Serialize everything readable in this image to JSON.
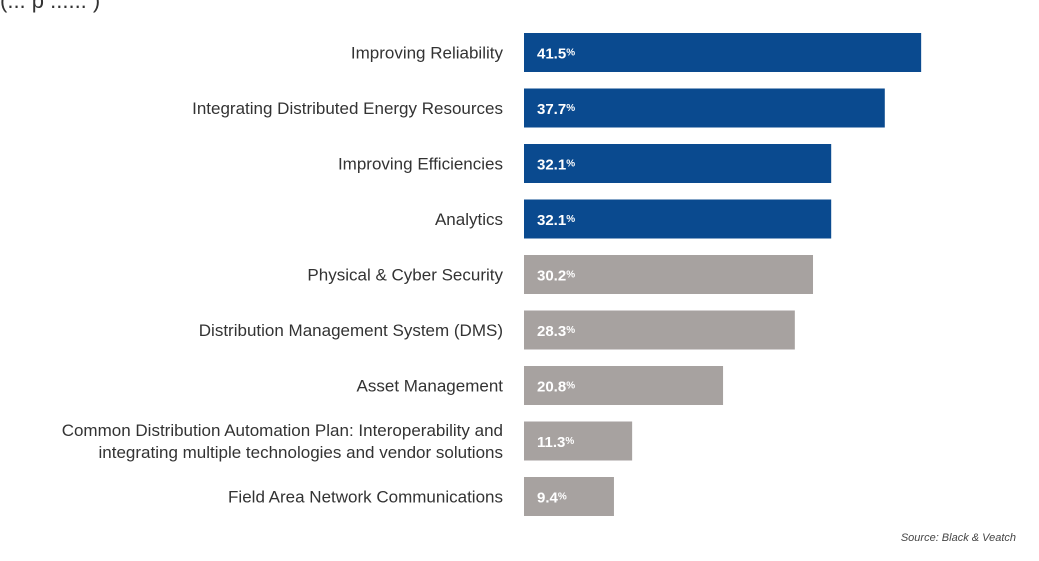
{
  "header": {
    "fragment": "(... p ...... )"
  },
  "source": "Source: Black & Veatch",
  "colors": {
    "highlight": "#0a4a8f",
    "base": "#a7a2a0",
    "label_text": "#333333",
    "value_text": "#ffffff"
  },
  "chart_data": {
    "type": "bar",
    "orientation": "horizontal",
    "categories": [
      "Improving Reliability",
      "Integrating Distributed Energy Resources",
      "Improving Efficiencies",
      "Analytics",
      "Physical & Cyber Security",
      "Distribution Management System (DMS)",
      "Asset Management",
      [
        "Common Distribution Automation Plan: Interoperability and",
        "integrating multiple technologies and vendor solutions"
      ],
      "Field Area Network Communications"
    ],
    "values": [
      41.5,
      37.7,
      32.1,
      32.1,
      30.2,
      28.3,
      20.8,
      11.3,
      9.4
    ],
    "value_unit": "%",
    "highlighted": [
      true,
      true,
      true,
      true,
      false,
      false,
      false,
      false,
      false
    ],
    "xlim": [
      0,
      45
    ],
    "grid": false,
    "legend": "none"
  }
}
